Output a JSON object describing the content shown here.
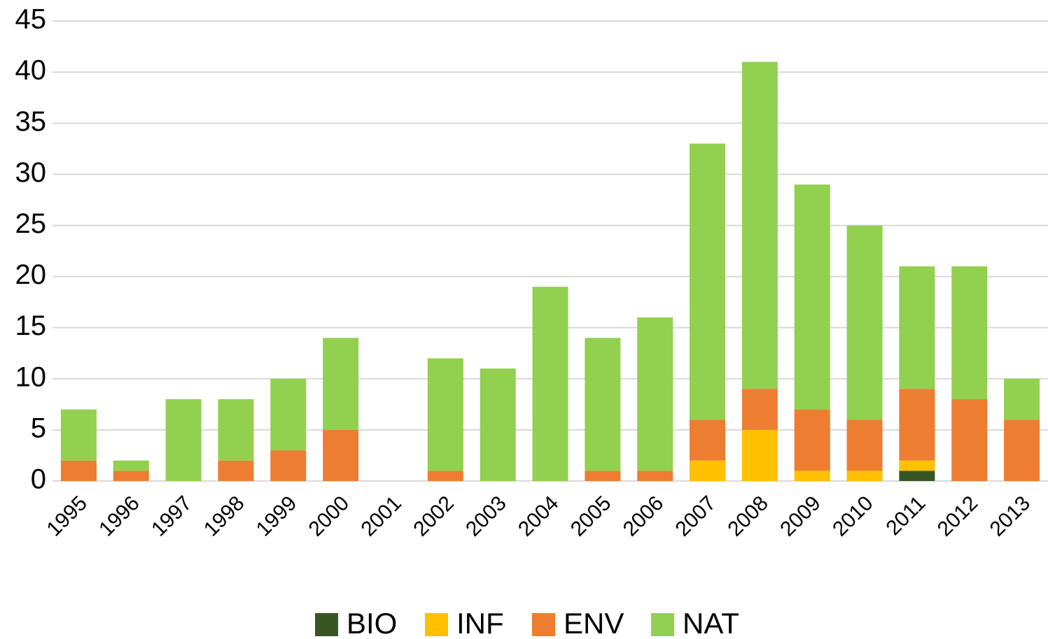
{
  "chart_data": {
    "type": "stacked_bar",
    "categories": [
      "1995",
      "1996",
      "1997",
      "1998",
      "1999",
      "2000",
      "2001",
      "2002",
      "2003",
      "2004",
      "2005",
      "2006",
      "2007",
      "2008",
      "2009",
      "2010",
      "2011",
      "2012",
      "2013"
    ],
    "series": [
      {
        "name": "BIO",
        "color": "#375623",
        "values": [
          0,
          0,
          0,
          0,
          0,
          0,
          0,
          0,
          0,
          0,
          0,
          0,
          0,
          0,
          0,
          0,
          1,
          0,
          0
        ]
      },
      {
        "name": "INF",
        "color": "#ffc000",
        "values": [
          0,
          0,
          0,
          0,
          0,
          0,
          0,
          0,
          0,
          0,
          0,
          0,
          2,
          5,
          1,
          1,
          1,
          0,
          0
        ]
      },
      {
        "name": "ENV",
        "color": "#ed7d31",
        "values": [
          2,
          1,
          0,
          2,
          3,
          5,
          0,
          1,
          0,
          0,
          1,
          1,
          4,
          4,
          6,
          5,
          7,
          8,
          6
        ]
      },
      {
        "name": "NAT",
        "color": "#92d050",
        "values": [
          5,
          1,
          8,
          6,
          7,
          9,
          0,
          11,
          11,
          19,
          13,
          15,
          27,
          32,
          22,
          19,
          12,
          13,
          4
        ]
      }
    ],
    "ylim": [
      0,
      45
    ],
    "yticks": [
      0,
      5,
      10,
      15,
      20,
      25,
      30,
      35,
      40,
      45
    ],
    "grid": true,
    "legend": "bottom"
  }
}
